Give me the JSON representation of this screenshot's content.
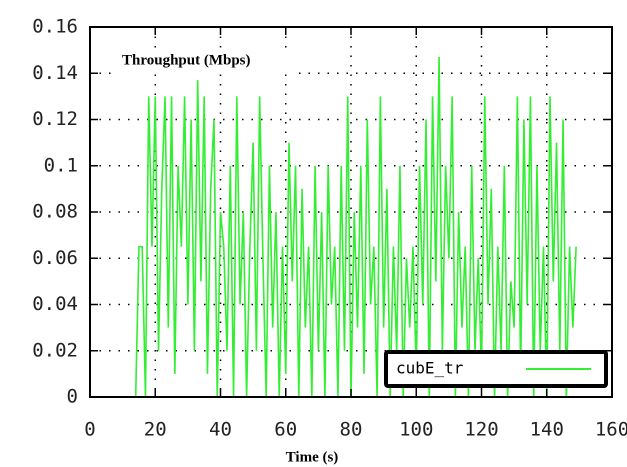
{
  "chart_data": {
    "type": "line",
    "title": "Throughput (Mbps)",
    "x_label": "Time (s)",
    "xlim": [
      0,
      160
    ],
    "xticks": [
      0,
      20,
      40,
      60,
      80,
      100,
      120,
      140,
      160
    ],
    "ylim": [
      0,
      0.16
    ],
    "yticks": [
      0,
      0.02,
      0.04,
      0.06,
      0.08,
      0.1,
      0.12,
      0.14,
      0.16
    ],
    "grid": true,
    "legend_position": "bottom-right",
    "x": [
      14,
      15,
      16,
      17,
      18,
      19,
      20,
      21,
      22,
      23,
      24,
      25,
      26,
      27,
      28,
      29,
      30,
      31,
      32,
      33,
      34,
      35,
      36,
      37,
      38,
      39,
      40,
      41,
      42,
      43,
      44,
      45,
      46,
      47,
      48,
      49,
      50,
      51,
      52,
      53,
      54,
      55,
      56,
      57,
      58,
      59,
      60,
      61,
      62,
      63,
      64,
      65,
      66,
      67,
      68,
      69,
      70,
      71,
      72,
      73,
      74,
      75,
      76,
      77,
      78,
      79,
      80,
      81,
      82,
      83,
      84,
      85,
      86,
      87,
      88,
      89,
      90,
      91,
      92,
      93,
      94,
      95,
      96,
      97,
      98,
      99,
      100,
      101,
      102,
      103,
      104,
      105,
      106,
      107,
      108,
      109,
      110,
      111,
      112,
      113,
      114,
      115,
      116,
      117,
      118,
      119,
      120,
      121,
      122,
      123,
      124,
      125,
      126,
      127,
      128,
      129,
      130,
      131,
      132,
      133,
      134,
      135,
      136,
      137,
      138,
      139,
      140,
      141,
      142,
      143,
      144,
      145,
      146,
      147,
      148,
      149
    ],
    "series": [
      {
        "name": "cubE_tr",
        "color": "#33ee33",
        "values": [
          0,
          0.065,
          0.065,
          0,
          0.13,
          0.065,
          0.13,
          0.02,
          0.09,
          0.13,
          0.03,
          0.13,
          0.01,
          0.1,
          0.065,
          0.13,
          0.04,
          0.12,
          0.02,
          0.137,
          0.05,
          0.13,
          0.01,
          0.09,
          0.12,
          0,
          0.08,
          0.065,
          0.02,
          0.1,
          0,
          0.13,
          0.04,
          0.08,
          0,
          0.065,
          0.11,
          0.02,
          0.13,
          0.06,
          0,
          0.1,
          0.03,
          0.08,
          0,
          0.065,
          0.01,
          0.11,
          0.05,
          0.1,
          0,
          0.09,
          0.03,
          0.065,
          0,
          0.1,
          0.02,
          0.08,
          0,
          0.1,
          0.04,
          0.065,
          0,
          0.1,
          0.02,
          0.13,
          0,
          0.08,
          0.03,
          0.1,
          0.01,
          0.12,
          0.04,
          0.065,
          0,
          0.13,
          0.03,
          0.09,
          0,
          0.065,
          0.02,
          0.1,
          0,
          0.06,
          0.03,
          0.065,
          0.01,
          0.1,
          0.04,
          0.12,
          0,
          0.13,
          0.05,
          0.147,
          0.02,
          0.1,
          0.06,
          0.13,
          0,
          0.08,
          0.03,
          0.065,
          0,
          0.1,
          0.02,
          0.06,
          0.01,
          0.13,
          0.04,
          0.09,
          0,
          0.065,
          0.02,
          0.1,
          0,
          0.05,
          0.03,
          0.13,
          0.01,
          0.12,
          0.04,
          0.13,
          0,
          0.1,
          0.02,
          0.065,
          0,
          0.13,
          0.05,
          0.11,
          0.02,
          0.12,
          0,
          0.065,
          0.03,
          0.065
        ]
      }
    ]
  }
}
